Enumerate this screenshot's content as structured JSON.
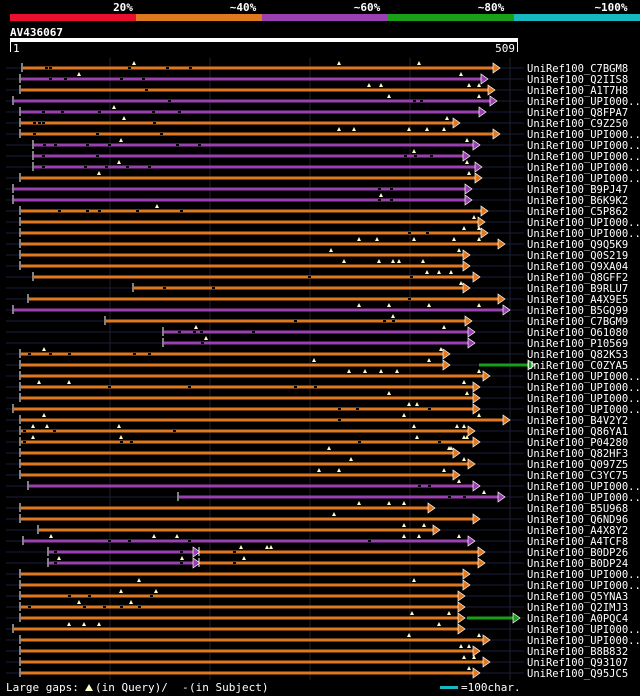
{
  "legend": {
    "labels": [
      "20%",
      "~40%",
      "~60%",
      "~80%",
      "~100%"
    ],
    "colors": [
      "#e8102e",
      "#e07820",
      "#9a40b0",
      "#18a018",
      "#18b8c0"
    ]
  },
  "query": {
    "name": "AV436067",
    "start": "1",
    "end": "509",
    "length": 509
  },
  "colors": {
    "orange": "#e07820",
    "magenta": "#9a40b0",
    "green": "#18a018",
    "gridline": "#1f1f30",
    "guide": "#1a1e3a",
    "label": "#ffffff",
    "marker": "#ffffcc"
  },
  "hits": [
    {
      "label": "UniRef100_C7BGM8",
      "color": "orange",
      "start": 14,
      "end": 490,
      "gaps": [
        37,
        41,
        120,
        158,
        181
      ],
      "markers": [
        125,
        330,
        410
      ]
    },
    {
      "label": "UniRef100_Q2IIS8",
      "color": "magenta",
      "start": 12,
      "end": 478,
      "gaps": [
        41,
        56,
        112,
        134
      ],
      "markers": [
        70,
        452
      ]
    },
    {
      "label": "UniRef100_A1T7H8",
      "color": "orange",
      "start": 12,
      "end": 485,
      "gaps": [
        137
      ],
      "markers": [
        360,
        372,
        460,
        470
      ]
    },
    {
      "label": "UniRef100_UPI000..",
      "color": "magenta",
      "start": 5,
      "end": 487,
      "gaps": [
        160,
        405,
        412
      ],
      "markers": [
        380,
        470
      ]
    },
    {
      "label": "UniRef100_Q8FPA7",
      "color": "magenta",
      "start": 12,
      "end": 476,
      "gaps": [
        34,
        53,
        90,
        144,
        170
      ],
      "markers": [
        105
      ]
    },
    {
      "label": "UniRef100_C9Z250",
      "color": "orange",
      "start": 12,
      "end": 450,
      "gaps": [
        25,
        30,
        34,
        145
      ],
      "markers": [
        115,
        438
      ]
    },
    {
      "label": "UniRef100_UPI000..",
      "color": "orange",
      "start": 12,
      "end": 490,
      "gaps": [
        25,
        88,
        152
      ],
      "markers": [
        330,
        345,
        400,
        418,
        435
      ]
    },
    {
      "label": "UniRef100_UPI000..",
      "color": "magenta",
      "start": 25,
      "end": 470,
      "gaps": [
        35,
        46,
        78,
        100,
        168,
        190
      ],
      "markers": [
        112,
        458
      ]
    },
    {
      "label": "UniRef100_UPI000..",
      "color": "magenta",
      "start": 25,
      "end": 460,
      "gaps": [
        34,
        88,
        396,
        406,
        422
      ],
      "markers": [
        405
      ]
    },
    {
      "label": "UniRef100_UPI000..",
      "color": "magenta",
      "start": 25,
      "end": 472,
      "gaps": [
        34,
        76,
        97,
        118,
        140
      ],
      "markers": [
        110,
        458
      ]
    },
    {
      "label": "UniRef100_UPI000..",
      "color": "orange",
      "start": 12,
      "end": 472,
      "gaps": [],
      "markers": [
        90,
        460
      ]
    },
    {
      "label": "UniRef100_B9PJ47",
      "color": "magenta",
      "start": 5,
      "end": 462,
      "gaps": [
        370,
        382
      ],
      "markers": []
    },
    {
      "label": "UniRef100_B6K9K2",
      "color": "magenta",
      "start": 5,
      "end": 462,
      "gaps": [
        370,
        382
      ],
      "markers": [
        372
      ]
    },
    {
      "label": "UniRef100_C5P862",
      "color": "orange",
      "start": 12,
      "end": 478,
      "gaps": [
        50,
        78,
        90,
        128,
        172
      ],
      "markers": [
        148
      ]
    },
    {
      "label": "UniRef100_UPI000..",
      "color": "orange",
      "start": 12,
      "end": 475,
      "gaps": [],
      "markers": [
        465
      ]
    },
    {
      "label": "UniRef100_UPI000..",
      "color": "orange",
      "start": 12,
      "end": 478,
      "gaps": [
        400,
        418
      ],
      "markers": [
        455,
        470
      ]
    },
    {
      "label": "UniRef100_Q9Q5K9",
      "color": "orange",
      "start": 12,
      "end": 495,
      "gaps": [],
      "markers": [
        350,
        368,
        405,
        445,
        470
      ]
    },
    {
      "label": "UniRef100_Q0S219",
      "color": "orange",
      "start": 12,
      "end": 460,
      "gaps": [],
      "markers": [
        322,
        450
      ]
    },
    {
      "label": "UniRef100_Q9XA04",
      "color": "orange",
      "start": 12,
      "end": 460,
      "gaps": [],
      "markers": [
        335,
        370,
        384,
        390,
        414
      ]
    },
    {
      "label": "UniRef100_Q8GFF2",
      "color": "orange",
      "start": 25,
      "end": 470,
      "gaps": [
        300,
        402
      ],
      "markers": [
        418,
        430,
        442
      ]
    },
    {
      "label": "UniRef100_B9RLU7",
      "color": "orange",
      "start": 125,
      "end": 460,
      "gaps": [
        155,
        204
      ],
      "markers": [
        452
      ]
    },
    {
      "label": "UniRef100_A4X9E5",
      "color": "orange",
      "start": 20,
      "end": 495,
      "gaps": [
        400
      ],
      "markers": []
    },
    {
      "label": "UniRef100_B5GQ99",
      "color": "magenta",
      "start": 5,
      "end": 500,
      "gaps": [],
      "markers": [
        350,
        380,
        420,
        470
      ]
    },
    {
      "label": "UniRef100_C7BGM9",
      "color": "orange",
      "start": 97,
      "end": 462,
      "gaps": [
        286,
        375,
        384
      ],
      "markers": [
        384
      ]
    },
    {
      "label": "UniRef100_O61080",
      "color": "magenta",
      "start": 155,
      "end": 465,
      "gaps": [
        170,
        185,
        192,
        244
      ],
      "markers": [
        187,
        435
      ]
    },
    {
      "label": "UniRef100_P10569",
      "color": "magenta",
      "start": 155,
      "end": 465,
      "gaps": [
        193
      ],
      "markers": [
        197
      ]
    },
    {
      "label": "UniRef100_Q82K53",
      "color": "orange",
      "start": 12,
      "end": 440,
      "gaps": [
        20,
        41,
        60,
        125,
        140
      ],
      "markers": [
        35,
        432
      ]
    },
    {
      "label": "UniRef100_C0ZYA5",
      "color": "orange",
      "start": 12,
      "end": 440,
      "gaps": [],
      "markers": [
        305,
        420
      ],
      "extension": {
        "color": "green",
        "start": 470,
        "end": 525
      }
    },
    {
      "label": "UniRef100_UPI000..",
      "color": "orange",
      "start": 12,
      "end": 480,
      "gaps": [],
      "markers": [
        340,
        356,
        372,
        388,
        470
      ]
    },
    {
      "label": "UniRef100_UPI000..",
      "color": "orange",
      "start": 12,
      "end": 470,
      "gaps": [
        100,
        180,
        286,
        306
      ],
      "markers": [
        30,
        60,
        455
      ]
    },
    {
      "label": "UniRef100_UPI000..",
      "color": "orange",
      "start": 12,
      "end": 470,
      "gaps": [],
      "markers": [
        380,
        458
      ]
    },
    {
      "label": "UniRef100_UPI000..",
      "color": "orange",
      "start": 5,
      "end": 470,
      "gaps": [
        330,
        348,
        420
      ],
      "markers": [
        400,
        408
      ]
    },
    {
      "label": "UniRef100_B4V2Y2",
      "color": "orange",
      "start": 12,
      "end": 500,
      "gaps": [
        330
      ],
      "markers": [
        35,
        395,
        470
      ]
    },
    {
      "label": "UniRef100_Q86YA1",
      "color": "orange",
      "start": 12,
      "end": 465,
      "gaps": [
        15,
        45,
        165
      ],
      "markers": [
        24,
        38,
        110,
        405,
        448,
        455
      ]
    },
    {
      "label": "UniRef100_P04280",
      "color": "orange",
      "start": 12,
      "end": 470,
      "gaps": [
        15,
        112,
        122,
        350,
        430
      ],
      "markers": [
        24,
        112,
        408,
        455,
        458
      ]
    },
    {
      "label": "UniRef100_Q82HF3",
      "color": "orange",
      "start": 12,
      "end": 450,
      "gaps": [],
      "markers": [
        320,
        440,
        442
      ]
    },
    {
      "label": "UniRef100_Q097Z5",
      "color": "orange",
      "start": 12,
      "end": 465,
      "gaps": [],
      "markers": [
        342,
        455
      ]
    },
    {
      "label": "UniRef100_C3YC75",
      "color": "orange",
      "start": 12,
      "end": 450,
      "gaps": [],
      "markers": [
        310,
        330,
        435
      ]
    },
    {
      "label": "UniRef100_UPI000..",
      "color": "magenta",
      "start": 20,
      "end": 470,
      "gaps": [
        410,
        420
      ],
      "markers": [
        450
      ]
    },
    {
      "label": "UniRef100_UPI000..",
      "color": "magenta",
      "start": 170,
      "end": 495,
      "gaps": [
        440,
        455
      ],
      "markers": [
        475
      ]
    },
    {
      "label": "UniRef100_B5U968",
      "color": "orange",
      "start": 12,
      "end": 425,
      "gaps": [],
      "markers": [
        350,
        380,
        395
      ]
    },
    {
      "label": "UniRef100_Q6ND96",
      "color": "orange",
      "start": 12,
      "end": 470,
      "gaps": [],
      "markers": [
        325
      ]
    },
    {
      "label": "UniRef100_A4X8Y2",
      "color": "orange",
      "start": 30,
      "end": 430,
      "gaps": [],
      "markers": [
        395,
        415
      ]
    },
    {
      "label": "UniRef100_A4TCF8",
      "color": "magenta",
      "start": 15,
      "end": 465,
      "gaps": [
        100,
        120,
        180,
        360
      ],
      "markers": [
        42,
        145,
        168,
        395,
        410,
        450
      ]
    },
    {
      "label": "UniRef100_B0DP26",
      "color": "magenta",
      "start": 40,
      "end": 190,
      "gaps": [
        46,
        172
      ],
      "markers": [],
      "segments": [
        {
          "color": "orange",
          "start": 191,
          "end": 475,
          "gaps": [
            225
          ],
          "markers": [
            232,
            258,
            262
          ]
        }
      ]
    },
    {
      "label": "UniRef100_B0DP24",
      "color": "magenta",
      "start": 40,
      "end": 190,
      "gaps": [
        46,
        172
      ],
      "markers": [
        50,
        173
      ],
      "segments": [
        {
          "color": "orange",
          "start": 191,
          "end": 475,
          "gaps": [
            225
          ],
          "markers": [
            235
          ]
        }
      ]
    },
    {
      "label": "UniRef100_UPI000..",
      "color": "orange",
      "start": 12,
      "end": 460,
      "gaps": [],
      "markers": []
    },
    {
      "label": "UniRef100_UPI000..",
      "color": "orange",
      "start": 12,
      "end": 460,
      "gaps": [],
      "markers": [
        130,
        405
      ]
    },
    {
      "label": "UniRef100_Q5YNA3",
      "color": "orange",
      "start": 12,
      "end": 455,
      "gaps": [
        60,
        80,
        142
      ],
      "markers": [
        112,
        147
      ]
    },
    {
      "label": "UniRef100_Q2IMJ3",
      "color": "orange",
      "start": 12,
      "end": 455,
      "gaps": [
        20,
        75,
        95,
        112,
        130
      ],
      "markers": [
        70,
        122
      ]
    },
    {
      "label": "UniRef100_A0PQC4",
      "color": "orange",
      "start": 12,
      "end": 455,
      "gaps": [],
      "markers": [
        403,
        440
      ],
      "extension": {
        "color": "green",
        "start": 458,
        "end": 510
      }
    },
    {
      "label": "UniRef100_UPI000..",
      "color": "orange",
      "start": 5,
      "end": 455,
      "gaps": [],
      "markers": [
        60,
        75,
        90,
        430
      ]
    },
    {
      "label": "UniRef100_UPI000..",
      "color": "orange",
      "start": 12,
      "end": 480,
      "gaps": [],
      "markers": [
        400,
        470
      ]
    },
    {
      "label": "UniRef100_B8B832",
      "color": "orange",
      "start": 12,
      "end": 470,
      "gaps": [],
      "markers": [
        452,
        460
      ]
    },
    {
      "label": "UniRef100_Q93107",
      "color": "orange",
      "start": 12,
      "end": 480,
      "gaps": [],
      "markers": [
        455,
        465
      ]
    },
    {
      "label": "UniRef100_Q95JC5",
      "color": "orange",
      "start": 12,
      "end": 470,
      "gaps": [],
      "markers": [
        460
      ]
    }
  ],
  "footer": {
    "large_gaps_label": "Large gaps:",
    "in_query": "(in Query)/",
    "gap_dash": "-",
    "in_subject": "(in Subject)",
    "scale_label": "=100char.",
    "scale_chars": 100
  }
}
